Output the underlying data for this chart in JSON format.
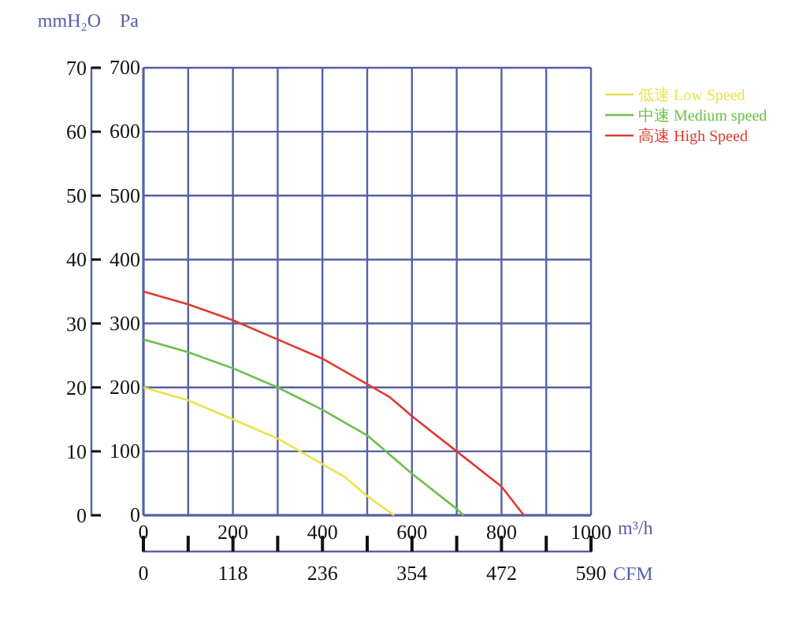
{
  "chart_data": {
    "type": "line",
    "xlabel": "m³/h",
    "ylabel": "Pa",
    "y2label": "mmH₂O",
    "x2label": "CFM",
    "xlim": [
      0,
      1000
    ],
    "xticks": [
      0,
      {
        "value": 100,
        "label": null
      },
      200,
      {
        "value": 300,
        "label": null
      },
      400,
      {
        "value": 500,
        "label": null
      },
      600,
      {
        "value": 700,
        "label": null
      },
      800,
      {
        "value": 900,
        "label": null
      },
      1000
    ],
    "x2lim": [
      0,
      590
    ],
    "x2ticks": [
      0,
      {
        "value": 59,
        "label": null
      },
      118,
      {
        "value": 177,
        "label": null
      },
      236,
      {
        "value": 295,
        "label": null
      },
      354,
      {
        "value": 413,
        "label": null
      },
      472,
      {
        "value": 531,
        "label": null
      },
      590
    ],
    "ylim": [
      0,
      700
    ],
    "yticks": [
      0,
      100,
      200,
      300,
      400,
      500,
      600,
      700
    ],
    "y2lim": [
      0,
      70
    ],
    "y2ticks": [
      0,
      10,
      20,
      30,
      40,
      50,
      60,
      70
    ],
    "grid": true,
    "legend": "top right",
    "marker": "none",
    "line_style": "solid",
    "series": [
      {
        "name": "低速 Low Speed",
        "color": "#e8e44a",
        "x": [
          0,
          100,
          200,
          300,
          400,
          450,
          500,
          560
        ],
        "values": [
          200,
          180,
          150,
          120,
          80,
          60,
          30,
          0
        ]
      },
      {
        "name": "中速 Medium speed",
        "color": "#6cbf4a",
        "x": [
          0,
          100,
          200,
          300,
          400,
          500,
          600,
          700,
          715
        ],
        "values": [
          275,
          255,
          230,
          200,
          165,
          125,
          65,
          10,
          0
        ]
      },
      {
        "name": "高速 High Speed",
        "color": "#e03a2f",
        "x": [
          0,
          100,
          200,
          300,
          400,
          500,
          550,
          600,
          700,
          800,
          850
        ],
        "values": [
          350,
          330,
          305,
          275,
          245,
          205,
          185,
          155,
          100,
          45,
          0
        ]
      }
    ]
  }
}
